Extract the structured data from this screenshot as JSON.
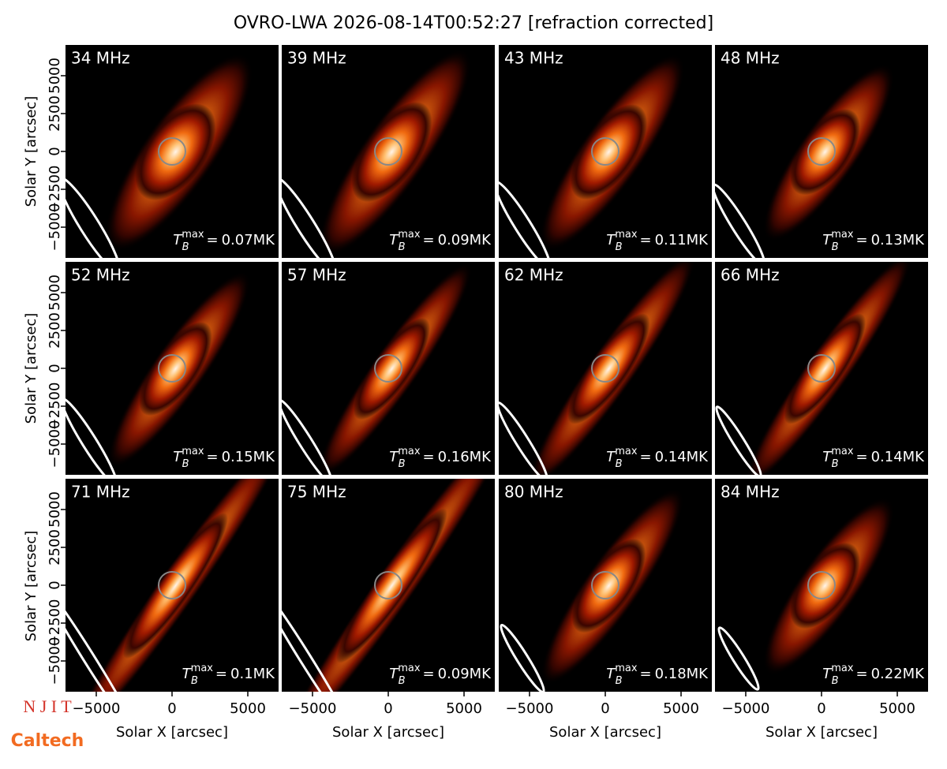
{
  "chart_data": {
    "type": "image-grid",
    "title": "OVRO-LWA 2026-08-14T00:52:27 [refraction corrected]",
    "xlabel": "Solar X [arcsec]",
    "ylabel": "Solar Y [arcsec]",
    "xlim": [
      -7030,
      7030
    ],
    "ylim": [
      -7030,
      7030
    ],
    "xticks": [
      {
        "value": -5000,
        "label": "−5000"
      },
      0,
      5000
    ],
    "yticks": [
      {
        "value": -5000,
        "label": "−5000"
      },
      {
        "value": -2500,
        "label": "−2500"
      },
      0,
      2500,
      5000
    ],
    "tb_symbol": "T",
    "tb_sub": "B",
    "tb_sup": "max",
    "tb_eq": "=",
    "tb_unit": "MK",
    "panels": [
      {
        "freq": "34 MHz",
        "tb_max": 0.07
      },
      {
        "freq": "39 MHz",
        "tb_max": 0.09
      },
      {
        "freq": "43 MHz",
        "tb_max": 0.11
      },
      {
        "freq": "48 MHz",
        "tb_max": 0.13
      },
      {
        "freq": "52 MHz",
        "tb_max": 0.15
      },
      {
        "freq": "57 MHz",
        "tb_max": 0.16
      },
      {
        "freq": "62 MHz",
        "tb_max": 0.14
      },
      {
        "freq": "66 MHz",
        "tb_max": 0.14
      },
      {
        "freq": "71 MHz",
        "tb_max": 0.1
      },
      {
        "freq": "75 MHz",
        "tb_max": 0.09
      },
      {
        "freq": "80 MHz",
        "tb_max": 0.18
      },
      {
        "freq": "84 MHz",
        "tb_max": 0.22
      }
    ]
  },
  "logos": [
    "N J I T",
    "Caltech"
  ]
}
